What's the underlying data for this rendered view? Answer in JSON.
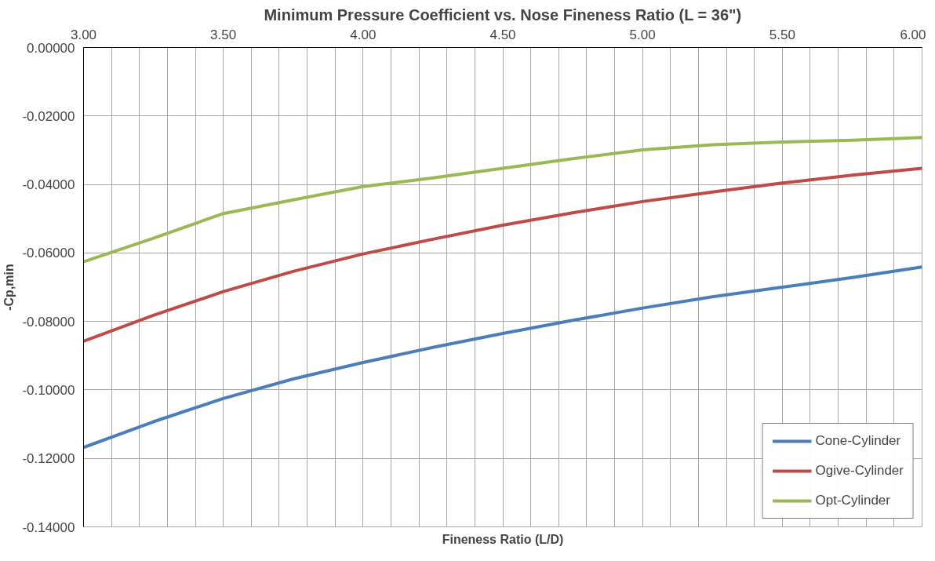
{
  "chart_data": {
    "type": "line",
    "title": "Minimum Pressure Coefficient vs. Nose Fineness Ratio (L = 36\")",
    "xlabel": "Fineness Ratio (L/D)",
    "ylabel": "-Cp,min",
    "x": [
      3.0,
      3.25,
      3.5,
      3.75,
      4.0,
      4.25,
      4.5,
      4.75,
      5.0,
      5.25,
      5.5,
      5.75,
      6.0
    ],
    "series": [
      {
        "name": "Cone-Cylinder",
        "color": "#4a7ebb",
        "values": [
          -0.1168,
          -0.1093,
          -0.1025,
          -0.0968,
          -0.092,
          -0.0876,
          -0.0835,
          -0.0797,
          -0.0761,
          -0.0728,
          -0.07,
          -0.0672,
          -0.0641
        ]
      },
      {
        "name": "Ogive-Cylinder",
        "color": "#be4b48",
        "values": [
          -0.0858,
          -0.0782,
          -0.0713,
          -0.0654,
          -0.0603,
          -0.056,
          -0.0519,
          -0.0483,
          -0.045,
          -0.0422,
          -0.0396,
          -0.0373,
          -0.0353
        ]
      },
      {
        "name": "Opt-Cylinder",
        "color": "#98b954",
        "values": [
          -0.0626,
          -0.0557,
          -0.0485,
          -0.0445,
          -0.0406,
          -0.0381,
          -0.0353,
          -0.0325,
          -0.0299,
          -0.0284,
          -0.0276,
          -0.0271,
          -0.0263
        ]
      }
    ],
    "xlim": [
      3.0,
      6.0
    ],
    "xticks": [
      {
        "value": 3.0,
        "label": "3.00"
      },
      {
        "value": 3.1,
        "label": null
      },
      {
        "value": 3.2,
        "label": null
      },
      {
        "value": 3.3,
        "label": null
      },
      {
        "value": 3.4,
        "label": null
      },
      {
        "value": 3.5,
        "label": "3.50"
      },
      {
        "value": 3.6,
        "label": null
      },
      {
        "value": 3.7,
        "label": null
      },
      {
        "value": 3.8,
        "label": null
      },
      {
        "value": 3.9,
        "label": null
      },
      {
        "value": 4.0,
        "label": "4.00"
      },
      {
        "value": 4.1,
        "label": null
      },
      {
        "value": 4.2,
        "label": null
      },
      {
        "value": 4.3,
        "label": null
      },
      {
        "value": 4.4,
        "label": null
      },
      {
        "value": 4.5,
        "label": "4.50"
      },
      {
        "value": 4.6,
        "label": null
      },
      {
        "value": 4.7,
        "label": null
      },
      {
        "value": 4.8,
        "label": null
      },
      {
        "value": 4.9,
        "label": null
      },
      {
        "value": 5.0,
        "label": "5.00"
      },
      {
        "value": 5.1,
        "label": null
      },
      {
        "value": 5.2,
        "label": null
      },
      {
        "value": 5.3,
        "label": null
      },
      {
        "value": 5.4,
        "label": null
      },
      {
        "value": 5.5,
        "label": "5.50"
      },
      {
        "value": 5.6,
        "label": null
      },
      {
        "value": 5.7,
        "label": null
      },
      {
        "value": 5.8,
        "label": null
      },
      {
        "value": 5.9,
        "label": null
      },
      {
        "value": 6.0,
        "label": "6.00"
      }
    ],
    "ylim": [
      -0.14,
      0.0
    ],
    "yticks": [
      {
        "value": -0.14,
        "label": "-0.14000"
      },
      {
        "value": -0.12,
        "label": "-0.12000"
      },
      {
        "value": -0.1,
        "label": "-0.10000"
      },
      {
        "value": -0.08,
        "label": "-0.08000"
      },
      {
        "value": -0.06,
        "label": "-0.06000"
      },
      {
        "value": -0.04,
        "label": "-0.04000"
      },
      {
        "value": -0.02,
        "label": "-0.02000"
      },
      {
        "value": 0.0,
        "label": "0.00000"
      }
    ],
    "grid": true,
    "legend": "bottom right",
    "marker": "none",
    "line_style": "solid"
  }
}
